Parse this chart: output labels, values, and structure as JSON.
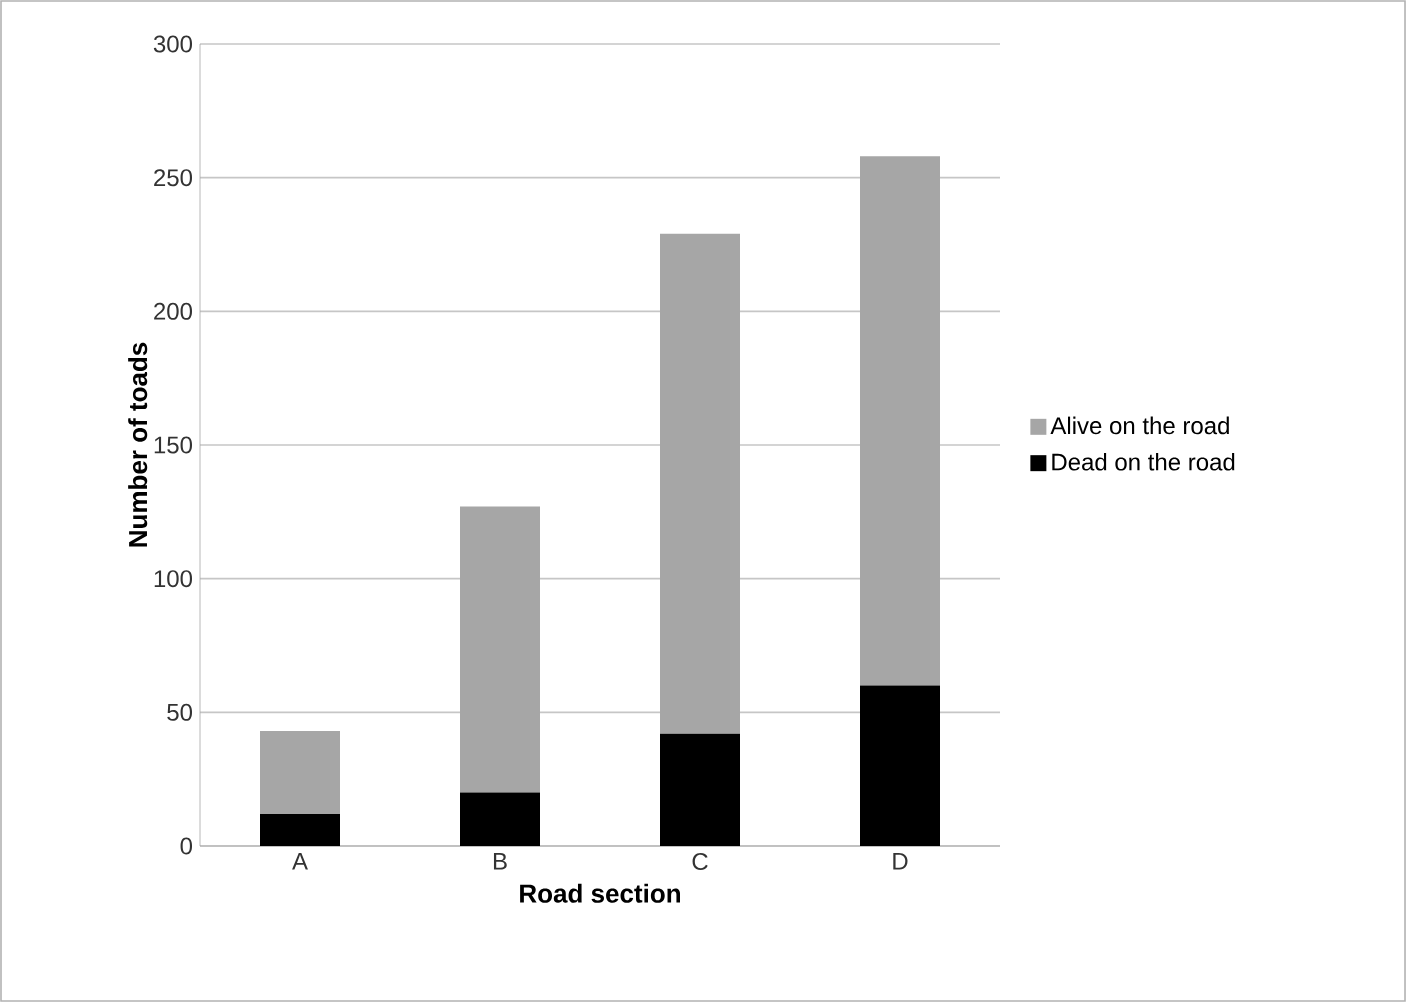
{
  "chart_data": {
    "type": "bar",
    "stacked": true,
    "xlabel": "Road section",
    "ylabel": "Number of toads",
    "categories": [
      "A",
      "B",
      "C",
      "D"
    ],
    "series": [
      {
        "name": "Dead on the road",
        "color": "#000000",
        "values": [
          12,
          20,
          42,
          60
        ]
      },
      {
        "name": "Alive on the road",
        "color": "#a6a6a6",
        "values": [
          31,
          107,
          187,
          198
        ]
      }
    ],
    "ylim": [
      0,
      300
    ],
    "yticks": [
      0,
      50,
      100,
      150,
      200,
      250,
      300
    ],
    "grid": "y",
    "legend": "right"
  }
}
